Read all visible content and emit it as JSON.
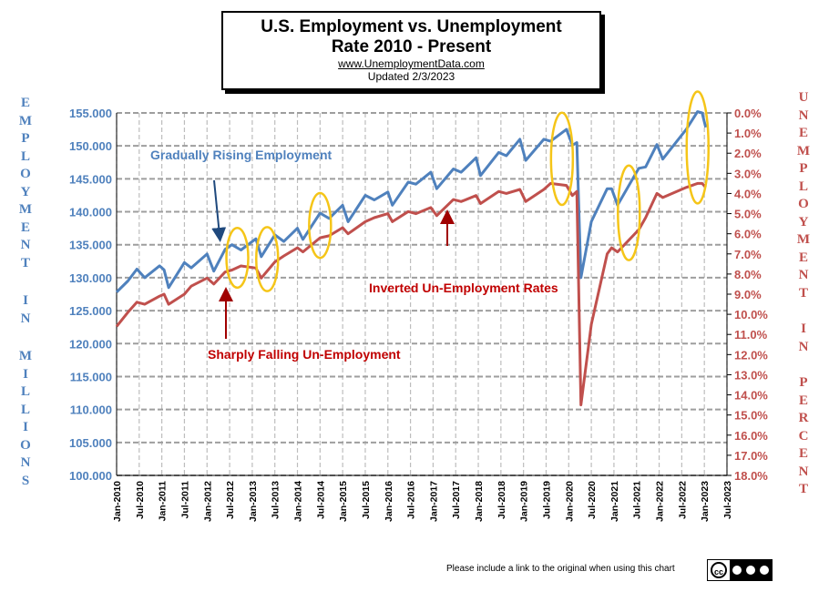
{
  "title": {
    "line1": "U.S. Employment vs. Unemployment",
    "line2": "Rate 2010 - Present",
    "source": "www.UnemploymentData.com",
    "updated": "Updated 2/3/2023"
  },
  "footer": "Please include a link to the original when using this chart",
  "license": {
    "label": "CC BY NC ND",
    "icon": "creative-commons-icon"
  },
  "colors": {
    "employment": "#4f81bd",
    "unemployment": "#c0504d",
    "highlight": "#f5c518",
    "annotation_blue": "#4f81bd",
    "annotation_red": "#c00000",
    "arrow_blue": "#1f497d",
    "arrow_red": "#a00000"
  },
  "chart_data": {
    "type": "line",
    "title": "U.S. Employment vs. Unemployment Rate 2010 - Present",
    "ylabel_left": "EMPLOYMENT IN MILLIONS",
    "ylabel_right": "UNEMPLOYMENT IN PERCENT",
    "ylim_left": [
      100,
      155
    ],
    "ylim_right_inverted": [
      0,
      18
    ],
    "xlim": [
      "2010-01",
      "2023-07"
    ],
    "grid": true,
    "y_ticks_left": [
      "155.000",
      "150.000",
      "145.000",
      "140.000",
      "135.000",
      "130.000",
      "125.000",
      "120.000",
      "115.000",
      "110.000",
      "105.000",
      "100.000"
    ],
    "y_ticks_right": [
      "0.0%",
      "1.0%",
      "2.0%",
      "3.0%",
      "4.0%",
      "5.0%",
      "6.0%",
      "7.0%",
      "8.0%",
      "9.0%",
      "10.0%",
      "11.0%",
      "12.0%",
      "13.0%",
      "14.0%",
      "15.0%",
      "16.0%",
      "17.0%",
      "18.0%"
    ],
    "x_ticks": [
      "Jan-2010",
      "Jul-2010",
      "Jan-2011",
      "Jul-2011",
      "Jan-2012",
      "Jul-2012",
      "Jan-2013",
      "Jul-2013",
      "Jan-2014",
      "Jul-2014",
      "Jan-2015",
      "Jul-2015",
      "Jan-2016",
      "Jul-2016",
      "Jan-2017",
      "Jul-2017",
      "Jan-2018",
      "Jul-2018",
      "Jan-2019",
      "Jul-2019",
      "Jan-2020",
      "Jul-2020",
      "Jan-2021",
      "Jul-2021",
      "Jan-2022",
      "Jul-2022",
      "Jan-2023",
      "Jul-2023"
    ],
    "series": [
      {
        "name": "Employment",
        "axis": "left",
        "points": [
          [
            2010.0,
            127.8
          ],
          [
            2010.25,
            129.5
          ],
          [
            2010.45,
            131.3
          ],
          [
            2010.62,
            130.0
          ],
          [
            2010.95,
            131.8
          ],
          [
            2011.05,
            131.2
          ],
          [
            2011.15,
            128.5
          ],
          [
            2011.5,
            132.3
          ],
          [
            2011.65,
            131.5
          ],
          [
            2012.0,
            133.6
          ],
          [
            2012.15,
            131.0
          ],
          [
            2012.4,
            134.3
          ],
          [
            2012.55,
            135.0
          ],
          [
            2012.75,
            134.2
          ],
          [
            2013.08,
            135.9
          ],
          [
            2013.2,
            133.2
          ],
          [
            2013.5,
            136.5
          ],
          [
            2013.7,
            135.5
          ],
          [
            2014.0,
            137.5
          ],
          [
            2014.12,
            135.8
          ],
          [
            2014.5,
            139.8
          ],
          [
            2014.7,
            139.0
          ],
          [
            2015.0,
            141.0
          ],
          [
            2015.12,
            138.5
          ],
          [
            2015.5,
            142.5
          ],
          [
            2015.7,
            141.8
          ],
          [
            2016.0,
            143.0
          ],
          [
            2016.1,
            141.0
          ],
          [
            2016.45,
            144.5
          ],
          [
            2016.62,
            144.2
          ],
          [
            2016.95,
            146.0
          ],
          [
            2017.08,
            143.5
          ],
          [
            2017.45,
            146.5
          ],
          [
            2017.62,
            146.0
          ],
          [
            2017.95,
            148.2
          ],
          [
            2018.05,
            145.5
          ],
          [
            2018.45,
            149.0
          ],
          [
            2018.62,
            148.5
          ],
          [
            2018.92,
            151.0
          ],
          [
            2019.05,
            147.8
          ],
          [
            2019.45,
            151.0
          ],
          [
            2019.6,
            150.7
          ],
          [
            2019.95,
            152.5
          ],
          [
            2020.08,
            150.1
          ],
          [
            2020.18,
            150.5
          ],
          [
            2020.27,
            130.0
          ],
          [
            2020.5,
            138.5
          ],
          [
            2020.85,
            143.5
          ],
          [
            2020.95,
            143.5
          ],
          [
            2021.08,
            141.0
          ],
          [
            2021.55,
            146.6
          ],
          [
            2021.7,
            146.8
          ],
          [
            2021.95,
            150.2
          ],
          [
            2022.08,
            148.0
          ],
          [
            2022.6,
            152.5
          ],
          [
            2022.85,
            155.2
          ],
          [
            2022.95,
            155.0
          ],
          [
            2023.03,
            152.8
          ]
        ]
      },
      {
        "name": "Unemployment Rate (inverted)",
        "axis": "right",
        "points": [
          [
            2010.0,
            10.6
          ],
          [
            2010.25,
            9.9
          ],
          [
            2010.45,
            9.4
          ],
          [
            2010.62,
            9.5
          ],
          [
            2010.95,
            9.1
          ],
          [
            2011.05,
            9.0
          ],
          [
            2011.15,
            9.5
          ],
          [
            2011.5,
            9.0
          ],
          [
            2011.65,
            8.6
          ],
          [
            2012.0,
            8.2
          ],
          [
            2012.15,
            8.5
          ],
          [
            2012.4,
            7.9
          ],
          [
            2012.55,
            7.8
          ],
          [
            2012.75,
            7.6
          ],
          [
            2013.08,
            7.7
          ],
          [
            2013.2,
            8.2
          ],
          [
            2013.5,
            7.4
          ],
          [
            2013.7,
            7.1
          ],
          [
            2014.0,
            6.7
          ],
          [
            2014.12,
            6.9
          ],
          [
            2014.5,
            6.2
          ],
          [
            2014.7,
            6.1
          ],
          [
            2015.0,
            5.7
          ],
          [
            2015.12,
            6.0
          ],
          [
            2015.5,
            5.4
          ],
          [
            2015.7,
            5.2
          ],
          [
            2016.0,
            5.0
          ],
          [
            2016.1,
            5.4
          ],
          [
            2016.45,
            4.9
          ],
          [
            2016.62,
            5.0
          ],
          [
            2016.95,
            4.7
          ],
          [
            2017.08,
            5.1
          ],
          [
            2017.45,
            4.3
          ],
          [
            2017.62,
            4.4
          ],
          [
            2017.95,
            4.1
          ],
          [
            2018.05,
            4.5
          ],
          [
            2018.45,
            3.9
          ],
          [
            2018.62,
            4.0
          ],
          [
            2018.92,
            3.8
          ],
          [
            2019.05,
            4.4
          ],
          [
            2019.45,
            3.8
          ],
          [
            2019.6,
            3.5
          ],
          [
            2019.95,
            3.6
          ],
          [
            2020.08,
            4.1
          ],
          [
            2020.18,
            3.9
          ],
          [
            2020.27,
            14.5
          ],
          [
            2020.5,
            10.5
          ],
          [
            2020.85,
            7.0
          ],
          [
            2020.95,
            6.7
          ],
          [
            2021.08,
            6.9
          ],
          [
            2021.55,
            5.8
          ],
          [
            2021.7,
            5.2
          ],
          [
            2021.95,
            4.0
          ],
          [
            2022.08,
            4.2
          ],
          [
            2022.6,
            3.7
          ],
          [
            2022.85,
            3.5
          ],
          [
            2022.95,
            3.5
          ],
          [
            2023.03,
            3.7
          ]
        ]
      }
    ],
    "annotations": [
      {
        "text": "Gradually Rising Employment",
        "color": "blue"
      },
      {
        "text": "Inverted Un-Employment Rates",
        "color": "red"
      },
      {
        "text": "Sharply Falling Un-Employment",
        "color": "red"
      }
    ],
    "highlights": [
      2012.67,
      2013.33,
      2014.5,
      2019.85,
      2021.33,
      2022.85
    ]
  }
}
